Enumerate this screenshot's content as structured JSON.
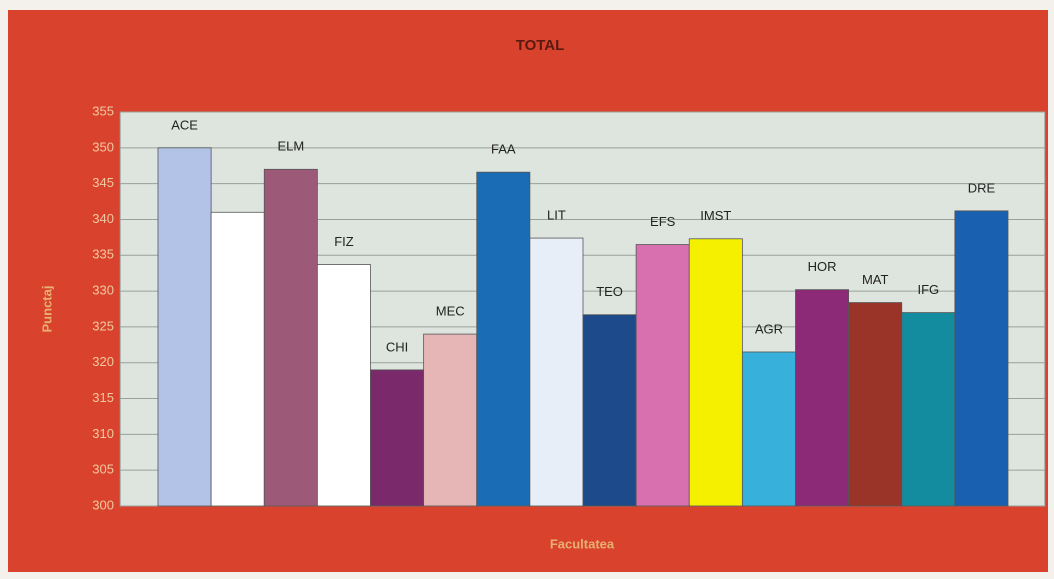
{
  "chart_data": {
    "type": "bar",
    "title": "TOTAL",
    "ylabel": "Punctaj",
    "xlabel": "Facultatea",
    "categories": [
      "ACE",
      null,
      "ELM",
      "FIZ",
      "CHI",
      "MEC",
      "FAA",
      "LIT",
      "TEO",
      "EFS",
      "IMST",
      "AGR",
      "HOR",
      "MAT",
      "IFG",
      "DRE"
    ],
    "values": [
      350,
      341,
      347,
      333.7,
      319,
      324,
      346.6,
      337.4,
      326.7,
      336.5,
      337.3,
      321.5,
      330.2,
      328.4,
      327,
      341.2
    ],
    "colors": [
      "#b3c3e8",
      "#ffffff",
      "#9c5a78",
      "#ffffff",
      "#7a2a6a",
      "#e6b5b5",
      "#1a6db5",
      "#e8eef8",
      "#1c4a8a",
      "#d870b0",
      "#f5f000",
      "#38b0dc",
      "#8c2a78",
      "#9a3428",
      "#148ca0",
      "#1a60b0"
    ],
    "ylim": [
      300,
      355
    ],
    "yticks": [
      300,
      305,
      310,
      315,
      320,
      325,
      330,
      335,
      340,
      345,
      350,
      355
    ],
    "grid": true
  }
}
